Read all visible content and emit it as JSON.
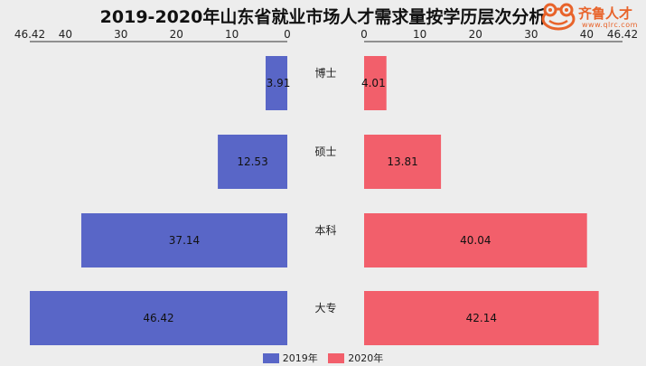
{
  "title": "2019-2020年山东省就业市场人才需求量按学历层次分析",
  "logo": {
    "text": "齐鲁人才",
    "sub": "www.qlrc.com"
  },
  "colors": {
    "series2019": "#5966c7",
    "series2020": "#f25f6b"
  },
  "chart_data": {
    "type": "bar",
    "orientation": "horizontal-butterfly",
    "categories": [
      "博士",
      "硕士",
      "本科",
      "大专"
    ],
    "series": [
      {
        "name": "2019年",
        "side": "left",
        "values": [
          3.91,
          12.53,
          37.14,
          46.42
        ]
      },
      {
        "name": "2020年",
        "side": "right",
        "values": [
          4.01,
          13.81,
          40.04,
          42.14
        ]
      }
    ],
    "left_axis": {
      "range": [
        46.42,
        0
      ],
      "ticks": [
        46.42,
        40,
        30,
        20,
        10,
        0
      ]
    },
    "right_axis": {
      "range": [
        0,
        46.42
      ],
      "ticks": [
        0,
        10,
        20,
        30,
        40,
        46.42
      ]
    },
    "legend_position": "bottom",
    "grid": false
  }
}
